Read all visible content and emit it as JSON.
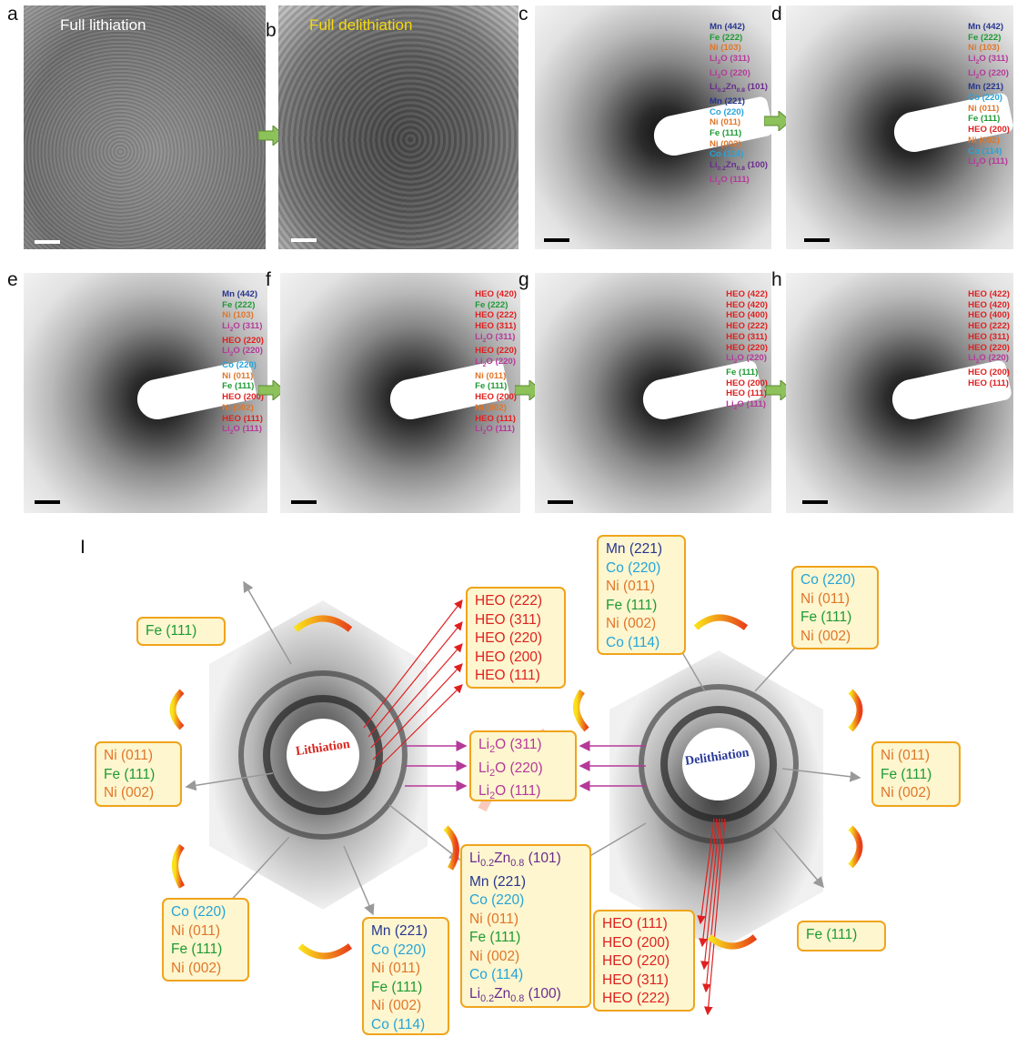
{
  "panel_letters": [
    "a",
    "b",
    "c",
    "d",
    "e",
    "f",
    "g",
    "h",
    "I"
  ],
  "captions": {
    "a": "Full lithiation",
    "b": "Full delithiation"
  },
  "caption_colors": {
    "a": "#ffffff",
    "b": "#f5d90a"
  },
  "label_colors": {
    "Mn": "#27368f",
    "Fe": "#1e9a34",
    "Ni": "#e0762a",
    "Co": "#25a4d8",
    "HEO": "#e02020",
    "Li2O": "#b5399a",
    "LiZn": "#6a2c8e"
  },
  "panel_c": [
    "Mn (442)",
    "Fe (222)",
    "Ni (103)",
    "Li2O (311)",
    "Li2O (220)",
    "Li0.2Zn0.8 (101)",
    "Mn (221)",
    "Co (220)",
    "Ni (011)",
    "Fe (111)",
    "Ni (002)",
    "Co (114)",
    "Li0.2Zn0.8 (100)",
    "Li2O (111)"
  ],
  "panel_d": [
    "Mn (442)",
    "Fe (222)",
    "Ni (103)",
    "Li2O (311)",
    "Li2O (220)",
    "Mn (221)",
    "Co (220)",
    "Ni (011)",
    "Fe (111)",
    "HEO (200)",
    "Ni (002)",
    "Co (114)",
    "Li2O (111)"
  ],
  "panel_e": [
    "Mn (442)",
    "Fe (222)",
    "Ni (103)",
    "Li2O (311)",
    "HEO (220)",
    "Li2O (220)",
    "Co (220)",
    "Ni (011)",
    "Fe (111)",
    "HEO (200)",
    "Ni (002)",
    "HEO (111)",
    "Li2O (111)"
  ],
  "panel_f": [
    "HEO (420)",
    "Fe (222)",
    "HEO (222)",
    "HEO (311)",
    "Li2O (311)",
    "HEO (220)",
    "Li2O (220)",
    "Ni (011)",
    "Fe (111)",
    "HEO (200)",
    "Ni (002)",
    "HEO (111)",
    "Li2O (111)"
  ],
  "panel_g": [
    "HEO (422)",
    "HEO (420)",
    "HEO (400)",
    "HEO (222)",
    "HEO (311)",
    "HEO (220)",
    "Li2O (220)",
    "Fe (111)",
    "HEO (200)",
    "HEO (111)",
    "Li2O (111)"
  ],
  "panel_h": [
    "HEO (422)",
    "HEO (420)",
    "HEO (400)",
    "HEO (222)",
    "HEO (311)",
    "HEO (220)",
    "Li2O (220)",
    "HEO (200)",
    "HEO (111)"
  ],
  "diagram": {
    "lithiation_label": "Lithiation",
    "delithiation_label": "Delithiation",
    "box_fe_left": [
      "Fe (111)"
    ],
    "box_left_mid": [
      "Ni (011)",
      "Fe (111)",
      "Ni (002)"
    ],
    "box_left_bottom": [
      "Co (220)",
      "Ni (011)",
      "Fe (111)",
      "Ni (002)"
    ],
    "box_bottom_center_left": [
      "Mn (221)",
      "Co (220)",
      "Ni (011)",
      "Fe (111)",
      "Ni (002)",
      "Co (114)"
    ],
    "box_heo_top": [
      "HEO (222)",
      "HEO (311)",
      "HEO (220)",
      "HEO (200)",
      "HEO (111)"
    ],
    "box_li2o": [
      "Li2O (311)",
      "Li2O (220)",
      "Li2O (111)"
    ],
    "box_center_bottom": [
      "Li0.2Zn0.8 (101)",
      "Mn (221)",
      "Co (220)",
      "Ni (011)",
      "Fe (111)",
      "Ni (002)",
      "Co (114)",
      "Li0.2Zn0.8 (100)"
    ],
    "box_top_right_center": [
      "Mn (221)",
      "Co (220)",
      "Ni (011)",
      "Fe (111)",
      "Ni (002)",
      "Co (114)"
    ],
    "box_top_right": [
      "Co (220)",
      "Ni (011)",
      "Fe (111)",
      "Ni (002)"
    ],
    "box_right_mid": [
      "Ni (011)",
      "Fe (111)",
      "Ni (002)"
    ],
    "box_fe_right": [
      "Fe (111)"
    ],
    "box_heo_bottom": [
      "HEO (111)",
      "HEO (200)",
      "HEO (220)",
      "HEO (311)",
      "HEO (222)"
    ]
  }
}
